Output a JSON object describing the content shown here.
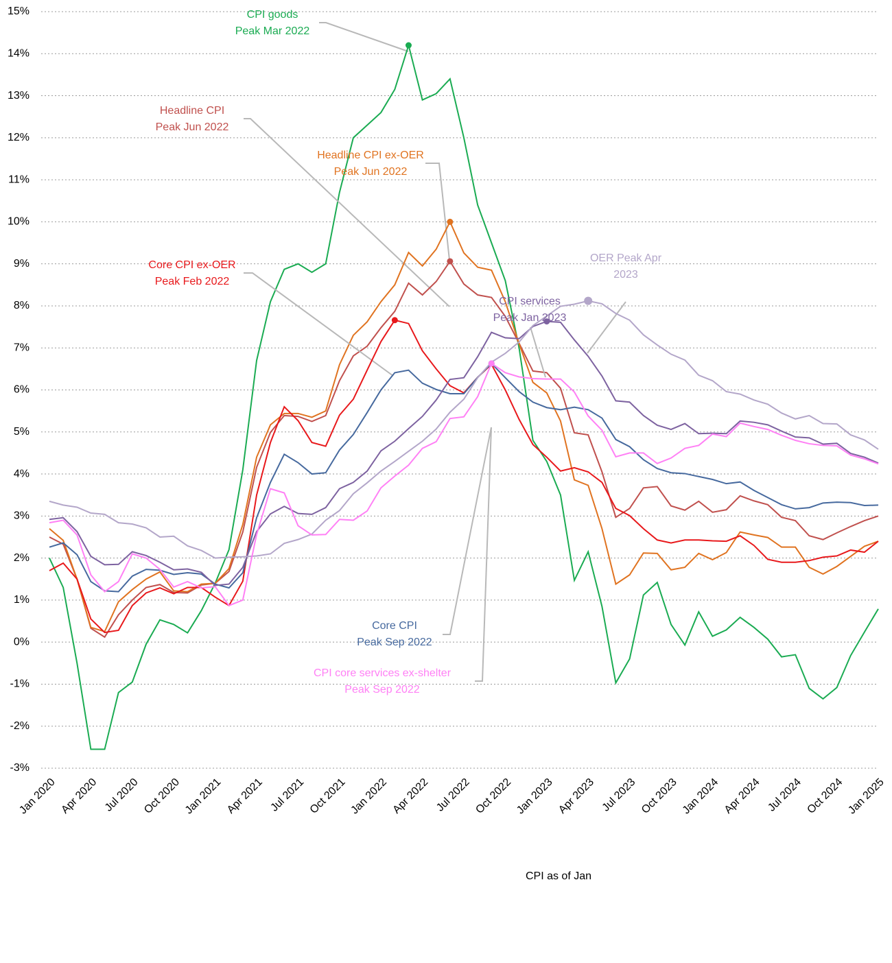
{
  "chart_data": {
    "type": "line",
    "annotation": "CPI as of Jan",
    "categories": [
      "Jan 2020",
      null,
      null,
      "Apr 2020",
      null,
      null,
      "Jul 2020",
      null,
      null,
      "Oct 2020",
      null,
      null,
      "Jan 2021",
      null,
      null,
      "Apr 2021",
      null,
      null,
      "Jul 2021",
      null,
      null,
      "Oct 2021",
      null,
      null,
      "Jan 2022",
      null,
      null,
      "Apr 2022",
      null,
      null,
      "Jul 2022",
      null,
      null,
      "Oct 2022",
      null,
      null,
      "Jan 2023",
      null,
      null,
      "Apr 2023",
      null,
      null,
      "Jul 2023",
      null,
      null,
      "Oct 2023",
      null,
      null,
      "Jan 2024",
      null,
      null,
      "Apr 2024",
      null,
      null,
      "Jul 2024",
      null,
      null,
      "Oct 2024",
      null,
      null,
      "Jan 2025"
    ],
    "ylim": [
      -3,
      15
    ],
    "yticks": [
      {
        "value": -3,
        "label": "-3%"
      },
      {
        "value": -2,
        "label": "-2%"
      },
      {
        "value": -1,
        "label": "-1%"
      },
      {
        "value": 0,
        "label": "0%"
      },
      {
        "value": 1,
        "label": "1%"
      },
      {
        "value": 2,
        "label": "2%"
      },
      {
        "value": 3,
        "label": "3%"
      },
      {
        "value": 4,
        "label": "4%"
      },
      {
        "value": 5,
        "label": "5%"
      },
      {
        "value": 6,
        "label": "6%"
      },
      {
        "value": 7,
        "label": "7%"
      },
      {
        "value": 8,
        "label": "8%"
      },
      {
        "value": 9,
        "label": "9%"
      },
      {
        "value": 10,
        "label": "10%"
      },
      {
        "value": 11,
        "label": "11%"
      },
      {
        "value": 12,
        "label": "12%"
      },
      {
        "value": 13,
        "label": "13%"
      },
      {
        "value": 14,
        "label": "14%"
      },
      {
        "value": 15,
        "label": "15%"
      }
    ],
    "grid": true,
    "series": [
      {
        "label": [
          "CPI goods",
          "Peak Mar 2022"
        ],
        "color": "#1aab52",
        "values": [
          2.0,
          1.3,
          -0.5,
          -2.55,
          -2.55,
          -1.2,
          -0.95,
          -0.05,
          0.53,
          0.42,
          0.22,
          0.75,
          1.4,
          2.2,
          4.1,
          6.7,
          8.1,
          8.87,
          9.0,
          8.8,
          9.0,
          10.7,
          12.0,
          12.3,
          12.6,
          13.15,
          14.2,
          12.9,
          13.05,
          13.4,
          12.0,
          10.4,
          9.5,
          8.6,
          7.0,
          4.8,
          4.3,
          3.5,
          1.47,
          2.15,
          0.85,
          -0.97,
          -0.4,
          1.12,
          1.42,
          0.42,
          -0.07,
          0.72,
          0.14,
          0.29,
          0.59,
          0.35,
          0.07,
          -0.35,
          -0.3,
          -1.1,
          -1.35,
          -1.08,
          -0.32,
          0.24,
          0.79
        ]
      },
      {
        "label": [
          "Headline CPI",
          "Peak Jun 2022"
        ],
        "color": "#c0504d",
        "values": [
          2.5,
          2.33,
          1.5,
          0.33,
          0.12,
          0.65,
          1.0,
          1.3,
          1.37,
          1.18,
          1.17,
          1.36,
          1.4,
          1.68,
          2.62,
          4.16,
          4.99,
          5.39,
          5.37,
          5.25,
          5.39,
          6.22,
          6.81,
          7.04,
          7.48,
          7.87,
          8.54,
          8.26,
          8.58,
          9.06,
          8.52,
          8.26,
          8.2,
          7.75,
          7.11,
          6.45,
          6.41,
          6.04,
          4.98,
          4.93,
          4.05,
          2.97,
          3.18,
          3.67,
          3.7,
          3.24,
          3.14,
          3.35,
          3.09,
          3.15,
          3.48,
          3.36,
          3.27,
          2.97,
          2.89,
          2.53,
          2.44,
          2.6,
          2.75,
          2.89,
          3.0
        ]
      },
      {
        "label": [
          "Headline CPI ex-OER",
          "Peak Jun 2022"
        ],
        "color": "#e07320",
        "values": [
          2.7,
          2.42,
          1.5,
          0.35,
          0.25,
          0.96,
          1.25,
          1.5,
          1.67,
          1.22,
          1.2,
          1.38,
          1.4,
          1.75,
          2.8,
          4.4,
          5.17,
          5.44,
          5.44,
          5.35,
          5.5,
          6.6,
          7.3,
          7.62,
          8.1,
          8.5,
          9.27,
          8.95,
          9.35,
          10.0,
          9.26,
          8.92,
          8.85,
          8.1,
          7.1,
          6.18,
          5.93,
          5.26,
          3.86,
          3.73,
          2.7,
          1.38,
          1.6,
          2.12,
          2.11,
          1.72,
          1.78,
          2.11,
          1.96,
          2.13,
          2.62,
          2.55,
          2.49,
          2.26,
          2.26,
          1.78,
          1.62,
          1.8,
          2.04,
          2.28,
          2.4
        ]
      },
      {
        "label": [
          "Core CPI ex-OER",
          "Peak Feb 2022"
        ],
        "color": "#e8181b",
        "values": [
          1.7,
          1.88,
          1.5,
          0.55,
          0.23,
          0.28,
          0.87,
          1.17,
          1.29,
          1.15,
          1.3,
          1.3,
          1.07,
          0.87,
          1.45,
          3.5,
          4.75,
          5.6,
          5.27,
          4.75,
          4.66,
          5.4,
          5.78,
          6.47,
          7.15,
          7.66,
          7.58,
          6.93,
          6.5,
          6.1,
          5.93,
          6.3,
          6.61,
          6.0,
          5.3,
          4.7,
          4.4,
          4.07,
          4.15,
          4.05,
          3.8,
          3.18,
          3.01,
          2.7,
          2.43,
          2.36,
          2.43,
          2.43,
          2.41,
          2.4,
          2.53,
          2.3,
          1.97,
          1.9,
          1.9,
          1.94,
          2.02,
          2.05,
          2.19,
          2.14,
          2.4
        ]
      },
      {
        "label": [
          "Core CPI",
          "Peak Sep 2022"
        ],
        "color": "#46699e",
        "values": [
          2.26,
          2.36,
          2.08,
          1.44,
          1.22,
          1.2,
          1.57,
          1.73,
          1.71,
          1.61,
          1.65,
          1.62,
          1.38,
          1.29,
          1.65,
          2.96,
          3.8,
          4.47,
          4.27,
          4.0,
          4.03,
          4.57,
          4.94,
          5.46,
          6.0,
          6.41,
          6.47,
          6.16,
          6.01,
          5.91,
          5.91,
          6.3,
          6.63,
          6.29,
          5.96,
          5.71,
          5.58,
          5.53,
          5.59,
          5.53,
          5.33,
          4.82,
          4.65,
          4.34,
          4.13,
          4.03,
          4.01,
          3.94,
          3.87,
          3.77,
          3.81,
          3.61,
          3.44,
          3.27,
          3.17,
          3.2,
          3.31,
          3.33,
          3.32,
          3.25,
          3.26
        ]
      },
      {
        "label": [
          "CPI services",
          "Peak Jan 2023"
        ],
        "color": "#7d62a0",
        "values": [
          2.92,
          2.96,
          2.63,
          2.04,
          1.84,
          1.85,
          2.15,
          2.06,
          1.9,
          1.72,
          1.74,
          1.66,
          1.35,
          1.38,
          1.78,
          2.63,
          3.05,
          3.23,
          3.06,
          3.04,
          3.2,
          3.65,
          3.8,
          4.07,
          4.55,
          4.78,
          5.08,
          5.37,
          5.76,
          6.25,
          6.29,
          6.79,
          7.37,
          7.24,
          7.22,
          7.51,
          7.63,
          7.61,
          7.19,
          6.8,
          6.33,
          5.74,
          5.71,
          5.39,
          5.16,
          5.06,
          5.2,
          4.96,
          4.97,
          4.96,
          5.26,
          5.23,
          5.17,
          5.02,
          4.88,
          4.86,
          4.71,
          4.73,
          4.49,
          4.4,
          4.26
        ]
      },
      {
        "label": [
          "OER Peak Apr",
          "2023"
        ],
        "color": "#b3a6c9",
        "values": [
          3.35,
          3.26,
          3.21,
          3.07,
          3.04,
          2.84,
          2.81,
          2.72,
          2.5,
          2.52,
          2.29,
          2.18,
          2.0,
          2.02,
          2.03,
          2.05,
          2.1,
          2.35,
          2.44,
          2.57,
          2.9,
          3.13,
          3.53,
          3.79,
          4.07,
          4.3,
          4.54,
          4.78,
          5.07,
          5.47,
          5.78,
          6.29,
          6.66,
          6.87,
          7.14,
          7.53,
          7.76,
          7.99,
          8.04,
          8.12,
          8.05,
          7.82,
          7.66,
          7.31,
          7.07,
          6.85,
          6.71,
          6.35,
          6.22,
          5.96,
          5.9,
          5.76,
          5.66,
          5.45,
          5.31,
          5.39,
          5.2,
          5.19,
          4.93,
          4.81,
          4.59
        ]
      },
      {
        "label": [
          "CPI core services ex-shelter",
          "Peak Sep 2022"
        ],
        "color": "#ff80f5",
        "values": [
          2.84,
          2.9,
          2.55,
          1.6,
          1.2,
          1.44,
          2.1,
          2.0,
          1.73,
          1.31,
          1.44,
          1.29,
          1.32,
          0.87,
          1.0,
          2.56,
          3.65,
          3.55,
          2.77,
          2.55,
          2.56,
          2.92,
          2.9,
          3.12,
          3.67,
          3.95,
          4.21,
          4.61,
          4.77,
          5.32,
          5.36,
          5.84,
          6.63,
          6.41,
          6.31,
          6.27,
          6.26,
          6.26,
          5.95,
          5.38,
          5.04,
          4.41,
          4.5,
          4.5,
          4.25,
          4.38,
          4.61,
          4.68,
          4.95,
          4.89,
          5.21,
          5.13,
          5.06,
          4.92,
          4.8,
          4.72,
          4.68,
          4.67,
          4.45,
          4.36,
          4.24
        ]
      }
    ]
  }
}
